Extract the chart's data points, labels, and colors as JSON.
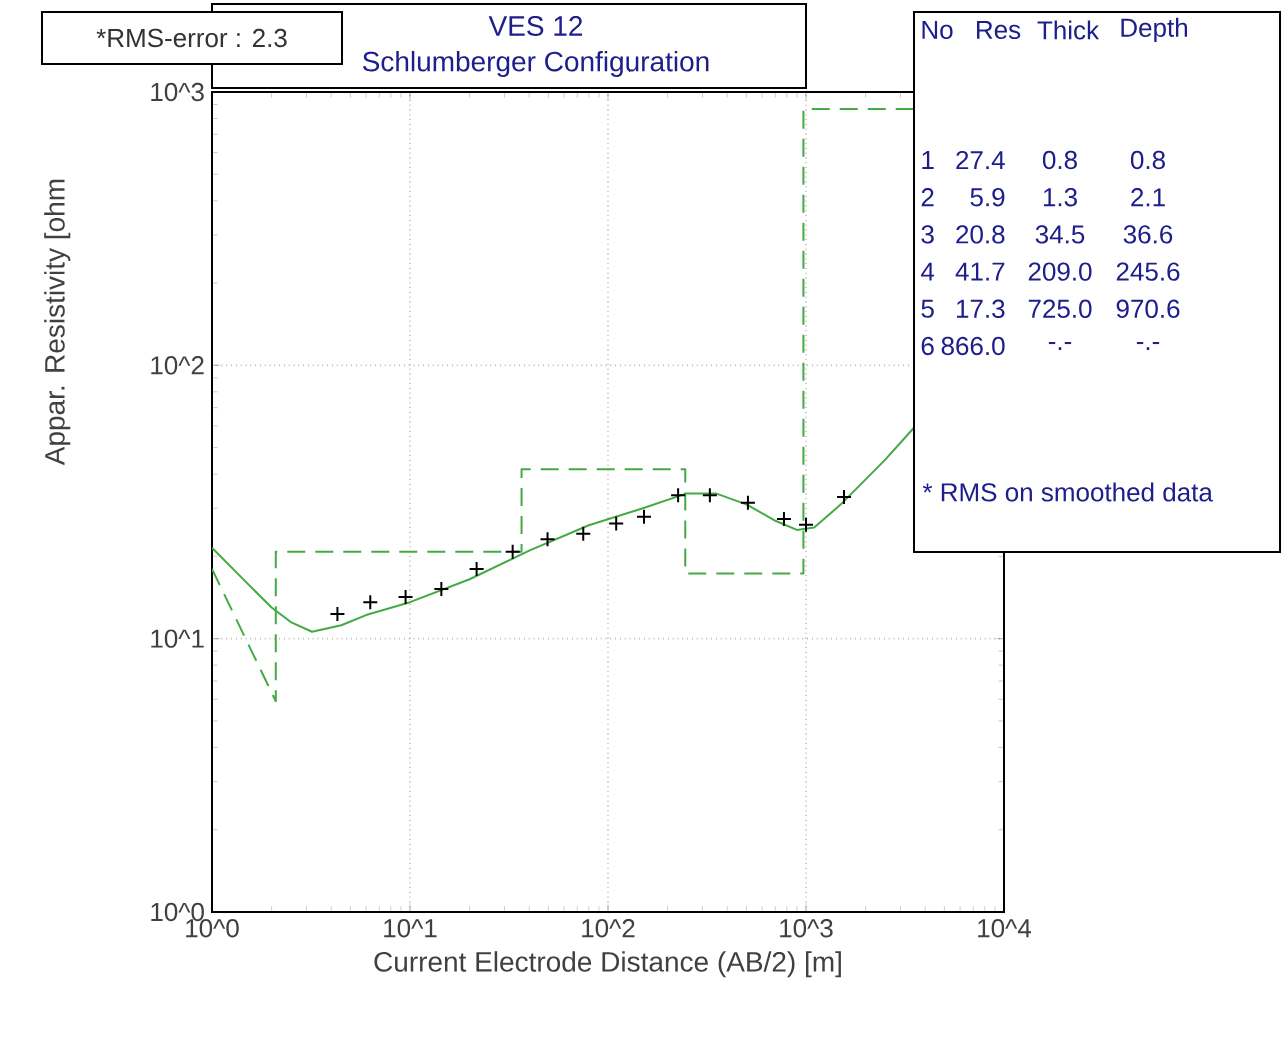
{
  "chart_data": {
    "type": "line",
    "title": "VES 12",
    "subtitle": "Schlumberger Configuration",
    "xlabel": "Current Electrode Distance (AB/2) [m]",
    "ylabel": "Appar. Resistivity [ohm",
    "log": "xy",
    "grid": true,
    "xlim": [
      1,
      10000
    ],
    "ylim": [
      1,
      1000
    ],
    "xticks": [
      {
        "value": 1,
        "label": "10^0"
      },
      {
        "value": 10,
        "label": "10^1"
      },
      {
        "value": 100,
        "label": "10^2"
      },
      {
        "value": 1000,
        "label": "10^3"
      },
      {
        "value": 10000,
        "label": "10^4"
      }
    ],
    "yticks": [
      {
        "value": 1,
        "label": "10^0"
      },
      {
        "value": 10,
        "label": "10^1"
      },
      {
        "value": 100,
        "label": "10^2"
      },
      {
        "value": 1000,
        "label": "10^3"
      }
    ],
    "series": [
      {
        "type": "scatter",
        "marker": "cross",
        "color": "#000000",
        "x": [
          4.3,
          6.3,
          9.5,
          14.4,
          21.7,
          33,
          49.5,
          75,
          110,
          152,
          226,
          327,
          509,
          774,
          1000,
          1556
        ],
        "values": [
          12.3,
          13.6,
          14.2,
          15.2,
          18,
          20.8,
          23.1,
          24.2,
          26.4,
          27.9,
          33.5,
          33.5,
          31.4,
          27.4,
          26.1,
          33
        ]
      },
      {
        "line_style": "solid",
        "color": "#44aa44",
        "x": [
          1,
          1.5,
          2,
          2.5,
          3.2,
          4.5,
          6,
          10,
          20,
          40,
          80,
          150,
          250,
          350,
          500,
          700,
          900,
          1100,
          1500,
          2500,
          3500
        ],
        "values": [
          21.5,
          16,
          13,
          11.5,
          10.6,
          11.2,
          12.2,
          13.6,
          16.5,
          21,
          26,
          30,
          34,
          34,
          31,
          27,
          25,
          25.5,
          31,
          45,
          59
        ]
      },
      {
        "line_style": "dashed",
        "color": "#44aa44",
        "x": [
          1,
          2.1,
          2.1,
          36.6,
          36.6,
          245.6,
          245.6,
          970.6,
          970.6,
          3500
        ],
        "values": [
          18,
          5.9,
          20.8,
          20.8,
          41.7,
          41.7,
          17.3,
          17.3,
          866,
          866
        ]
      }
    ],
    "annotations": [
      "*RMS-error :  2.3",
      "No",
      "Res",
      "Thick",
      "Depth",
      "1",
      "27.4",
      "0.8",
      "0.8",
      "2",
      "5.9",
      "1.3",
      "2.1",
      "3",
      "20.8",
      "34.5",
      "36.6",
      "4",
      "41.7",
      "209.0",
      "245.6",
      "5",
      "17.3",
      "725.0",
      "970.6",
      "6",
      "866.0",
      "-.-",
      "-.-",
      "* RMS on smoothed data"
    ]
  }
}
